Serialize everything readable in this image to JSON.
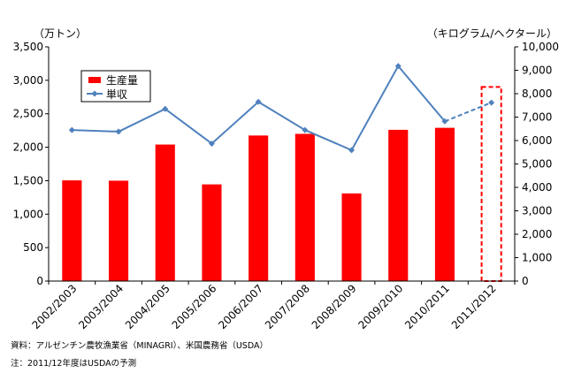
{
  "chart_data": {
    "type": "bar",
    "categories": [
      "2002/2003",
      "2003/2004",
      "2004/2005",
      "2005/2006",
      "2006/2007",
      "2007/2008",
      "2008/2009",
      "2009/2010",
      "2010/2011",
      "2011/2012"
    ],
    "y_left_unit": "（万トン）",
    "y_right_unit": "（キログラム/ヘクタール）",
    "y_left_range": [
      0,
      3500
    ],
    "y_right_range": [
      0,
      10000
    ],
    "y_left_ticks": [
      "0",
      "500",
      "1,000",
      "1,500",
      "2,000",
      "2,500",
      "3,000",
      "3,500"
    ],
    "y_right_ticks": [
      "0",
      "1,000",
      "2,000",
      "3,000",
      "4,000",
      "5,000",
      "6,000",
      "7,000",
      "8,000",
      "9,000",
      "10,000"
    ],
    "series": [
      {
        "name": "生産量",
        "type": "bar",
        "axis": "left",
        "color": "#ff0000",
        "values": [
          1505,
          1500,
          2040,
          1445,
          2175,
          2200,
          1310,
          2260,
          2290,
          null
        ],
        "forecast_box_value": 2900
      },
      {
        "name": "単収",
        "type": "line",
        "axis": "right",
        "color": "#4f81bd",
        "marker": "diamond",
        "values": [
          6450,
          6380,
          7350,
          5870,
          7650,
          6450,
          5590,
          9180,
          6820,
          7620
        ],
        "forecast_from_index": 8
      }
    ],
    "legend_position": "top-left",
    "grid": false
  },
  "footnotes": {
    "source": "資料：アルゼンチン農牧漁業省（MINAGRI）、米国農務省（USDA）",
    "note": "注：2011/12年度はUSDAの予測"
  }
}
